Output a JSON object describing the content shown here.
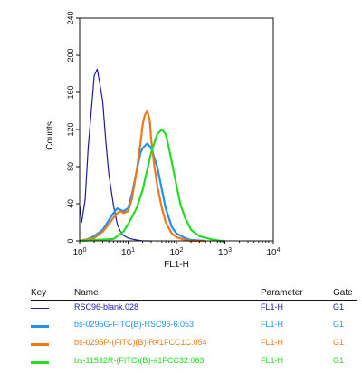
{
  "chart_data": {
    "type": "line",
    "xlabel": "FL1-H",
    "ylabel": "Counts",
    "x_scale": "log",
    "xlim": [
      1,
      10000
    ],
    "ylim": [
      0,
      240
    ],
    "x_ticks": [
      1,
      10,
      100,
      1000,
      10000
    ],
    "x_tick_labels": [
      "10^0",
      "10^1",
      "10^2",
      "10^3",
      "10^4"
    ],
    "y_ticks": [
      0,
      40,
      80,
      120,
      160,
      200,
      240
    ],
    "y_tick_labels": [
      "0",
      "40",
      "80",
      "120",
      "160",
      "200",
      "240"
    ],
    "grid": false,
    "series": [
      {
        "name": "RSC96-blank.028",
        "color": "#1a1aa6",
        "x": [
          1,
          1.1,
          1.3,
          1.5,
          1.8,
          2.0,
          2.3,
          2.6,
          3.0,
          3.5,
          4.0,
          5.0,
          6.0,
          7.0,
          8.0,
          10,
          12,
          15,
          20,
          30
        ],
        "y": [
          38,
          20,
          45,
          100,
          150,
          178,
          185,
          170,
          150,
          105,
          72,
          38,
          18,
          10,
          6,
          3,
          2,
          1,
          0,
          0
        ]
      },
      {
        "name": "bs-0295G-FITC(B)-RSC96-6.053",
        "color": "#1e90ff",
        "x": [
          1,
          1.5,
          2,
          3,
          4,
          5,
          6,
          8,
          10,
          12,
          15,
          18,
          20,
          25,
          30,
          40,
          50,
          60,
          80,
          100,
          150,
          200,
          400
        ],
        "y": [
          0,
          2,
          5,
          12,
          22,
          30,
          35,
          32,
          35,
          50,
          75,
          95,
          100,
          105,
          100,
          80,
          55,
          35,
          15,
          8,
          3,
          1,
          0
        ]
      },
      {
        "name": "bs-0295P-(FITC)(B)-R#1FCC1C.054",
        "color": "#f07814",
        "x": [
          1,
          2,
          3,
          4,
          5,
          6,
          7,
          8,
          10,
          12,
          15,
          18,
          20,
          22,
          25,
          28,
          30,
          35,
          40,
          50,
          60,
          80,
          100,
          150,
          200,
          400
        ],
        "y": [
          0,
          3,
          10,
          18,
          25,
          30,
          32,
          30,
          32,
          45,
          75,
          105,
          125,
          135,
          140,
          130,
          110,
          80,
          60,
          35,
          20,
          8,
          4,
          1,
          0,
          0
        ]
      },
      {
        "name": "bs-11532R-(FITC)(B)-#1FCC32.063",
        "color": "#22dd22",
        "x": [
          1,
          5,
          8,
          10,
          15,
          20,
          30,
          40,
          50,
          60,
          70,
          80,
          100,
          120,
          150,
          200,
          300,
          500,
          800,
          1000
        ],
        "y": [
          0,
          2,
          10,
          18,
          35,
          55,
          95,
          115,
          120,
          115,
          100,
          85,
          60,
          40,
          25,
          12,
          5,
          2,
          0,
          0
        ]
      }
    ]
  },
  "key": {
    "headers": {
      "key": "Key",
      "name": "Name",
      "parameter": "Parameter",
      "gate": "Gate"
    },
    "rows": [
      {
        "name": "RSC96-blank.028",
        "parameter": "FL1-H",
        "gate": "G1",
        "color": "#1a1aa6"
      },
      {
        "name": "bs-0295G-FITC(B)-RSC96-6.053",
        "parameter": "FL1-H",
        "gate": "G1",
        "color": "#1e90ff"
      },
      {
        "name": "bs-0295P-(FITC)(B)-R#1FCC1C.054",
        "parameter": "FL1-H",
        "gate": "G1",
        "color": "#f07814"
      },
      {
        "name": "bs-11532R-(FITC)(B)-#1FCC32.063",
        "parameter": "FL1-H",
        "gate": "G1",
        "color": "#22dd22"
      }
    ]
  }
}
